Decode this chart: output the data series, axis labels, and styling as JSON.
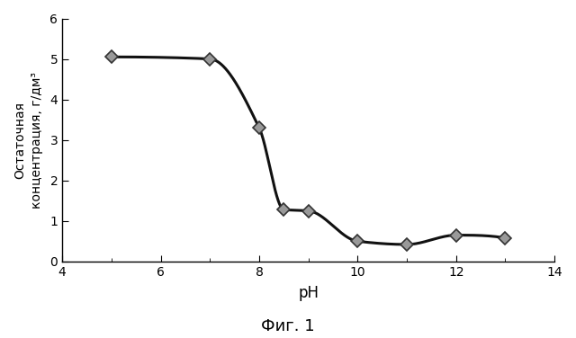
{
  "x": [
    5,
    7,
    8,
    8.5,
    9,
    10,
    11,
    12,
    13
  ],
  "y": [
    5.05,
    5.0,
    3.3,
    1.28,
    1.25,
    0.5,
    0.42,
    0.65,
    0.58
  ],
  "xlabel": "pH",
  "ylabel": "Остаточная\nконцентрация, г/дм³",
  "caption": "Фиг. 1",
  "xlim": [
    4,
    14
  ],
  "ylim": [
    0,
    6
  ],
  "xticks": [
    4,
    6,
    8,
    10,
    12,
    14
  ],
  "yticks": [
    0,
    1,
    2,
    3,
    4,
    5,
    6
  ],
  "line_color": "#111111",
  "marker_facecolor": "#999999",
  "marker_edgecolor": "#333333",
  "background_color": "#ffffff",
  "fig_background": "#ffffff"
}
